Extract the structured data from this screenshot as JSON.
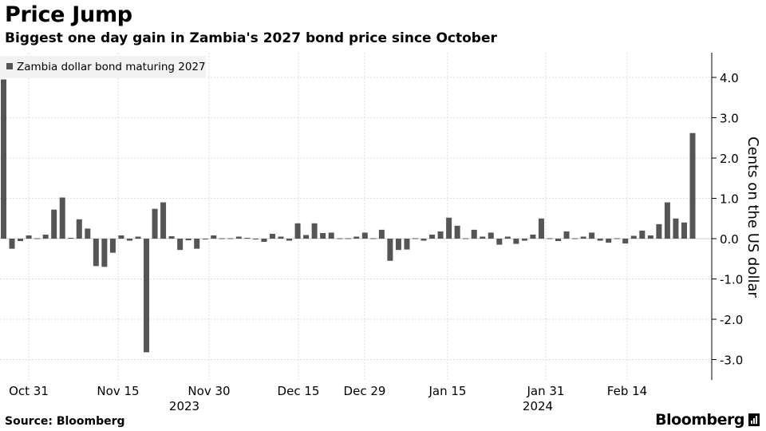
{
  "chart_data": {
    "type": "bar",
    "title": "Price Jump",
    "subtitle": "Biggest one day gain in Zambia's 2027 bond price since October",
    "ylabel": "Cents on the US dollar",
    "ylim": [
      -3.0,
      4.0
    ],
    "yticks": [
      "4.0",
      "3.0",
      "2.0",
      "1.0",
      "0.0",
      "-1.0",
      "-2.0",
      "-3.0"
    ],
    "xticks": [
      "Oct 31",
      "Nov 15",
      "Nov 30",
      "Dec 15",
      "Dec 29",
      "Jan 15",
      "Jan 31",
      "Feb 14"
    ],
    "year_labels": [
      "2023",
      "2024"
    ],
    "legend": {
      "label": "Zambia dollar bond maturing 2027",
      "position": "top-left"
    },
    "grid": true,
    "series": [
      {
        "name": "Zambia dollar bond maturing 2027",
        "color": "#555555",
        "values": [
          3.95,
          -0.25,
          -0.06,
          0.08,
          0.0,
          0.1,
          0.72,
          1.02,
          0.02,
          0.48,
          0.25,
          -0.68,
          -0.7,
          -0.35,
          0.08,
          -0.05,
          0.05,
          -2.82,
          0.74,
          0.9,
          0.06,
          -0.28,
          -0.04,
          -0.25,
          -0.02,
          0.08,
          0.0,
          0.0,
          0.05,
          0.02,
          -0.02,
          -0.08,
          0.12,
          0.05,
          -0.05,
          0.38,
          0.09,
          0.38,
          0.14,
          0.15,
          0.0,
          0.0,
          0.05,
          0.15,
          0.0,
          0.22,
          -0.55,
          -0.28,
          -0.27,
          0.0,
          -0.05,
          0.1,
          0.18,
          0.52,
          0.32,
          0.0,
          0.22,
          0.05,
          0.15,
          -0.15,
          0.05,
          -0.13,
          -0.05,
          0.1,
          0.5,
          0.0,
          -0.06,
          0.18,
          0.0,
          0.05,
          0.15,
          -0.05,
          -0.1,
          0.0,
          -0.12,
          0.07,
          0.2,
          0.08,
          0.36,
          0.9,
          0.5,
          0.4,
          2.62
        ]
      }
    ]
  },
  "footer": {
    "source": "Source: Bloomberg",
    "brand": "Bloomberg"
  }
}
